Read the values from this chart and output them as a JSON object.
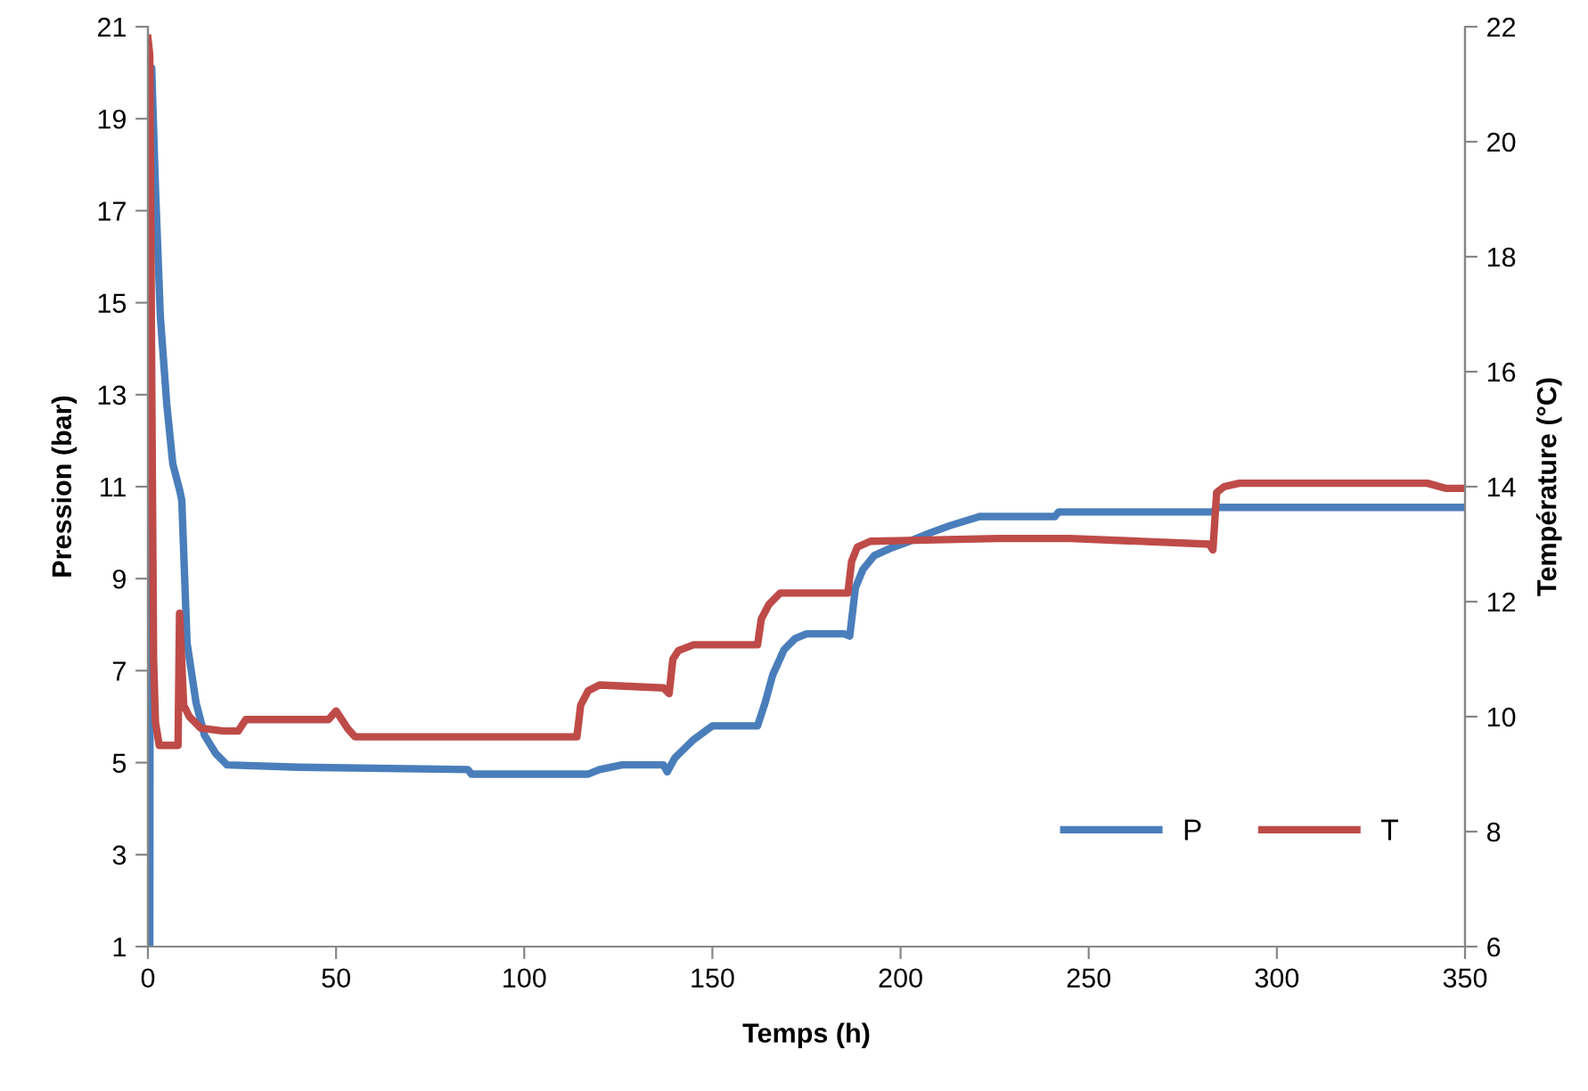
{
  "chart_data": {
    "type": "line",
    "xlabel": "Temps (h)",
    "ylabel": "Pression (bar)",
    "y2label": "Température (°C)",
    "xlim": [
      0,
      350
    ],
    "xticks": [
      0,
      50,
      100,
      150,
      200,
      250,
      300,
      350
    ],
    "ylim": [
      1,
      21
    ],
    "yticks": [
      1,
      3,
      5,
      7,
      9,
      11,
      13,
      15,
      17,
      19,
      21
    ],
    "y2lim": [
      6,
      22
    ],
    "y2ticks": [
      6,
      8,
      10,
      12,
      14,
      16,
      18,
      20,
      22
    ],
    "grid": false,
    "legend": "bottom right",
    "marker": "none",
    "line_style": "solid",
    "series": [
      {
        "name": "P",
        "color": "#4a7ebb",
        "x": [
          0.5,
          0.7,
          1,
          2,
          3.3,
          5,
          6.6,
          8.5,
          9,
          10.4,
          12.8,
          15,
          18,
          21,
          40,
          85,
          86,
          117,
          120,
          126,
          137,
          138,
          140,
          145,
          150,
          162,
          164,
          166,
          169,
          172,
          175,
          185,
          186.5,
          188,
          190,
          193,
          197,
          202,
          208,
          213,
          221,
          241,
          242,
          283,
          284,
          350
        ],
        "values": [
          1,
          19.8,
          20.1,
          17.5,
          14.7,
          12.8,
          11.5,
          10.9,
          10.7,
          7.6,
          6.3,
          5.6,
          5.2,
          4.95,
          4.9,
          4.85,
          4.75,
          4.75,
          4.85,
          4.95,
          4.95,
          4.8,
          5.1,
          5.5,
          5.8,
          5.8,
          6.3,
          6.9,
          7.45,
          7.7,
          7.8,
          7.8,
          7.75,
          8.8,
          9.2,
          9.5,
          9.65,
          9.8,
          10,
          10.15,
          10.35,
          10.35,
          10.45,
          10.45,
          10.55,
          10.55
        ]
      },
      {
        "name": "T",
        "color": "#be4b48",
        "axis": "y2",
        "x": [
          0,
          0.5,
          1,
          1.5,
          2,
          3,
          8,
          8.4,
          9.5,
          11,
          14,
          20,
          24,
          26,
          48,
          50,
          53,
          55,
          114,
          115,
          117,
          120,
          137,
          138.5,
          139.5,
          141,
          145,
          162,
          163,
          165,
          168,
          186,
          187,
          188.5,
          192,
          226,
          245,
          282,
          283,
          284,
          286,
          290,
          340,
          345,
          350
        ],
        "values": [
          21.8,
          21.5,
          16,
          11,
          9.9,
          9.5,
          9.5,
          11.8,
          10.2,
          10,
          9.8,
          9.75,
          9.75,
          9.95,
          9.95,
          10.1,
          9.8,
          9.65,
          9.65,
          10.2,
          10.45,
          10.55,
          10.5,
          10.4,
          11,
          11.15,
          11.25,
          11.25,
          11.7,
          11.95,
          12.15,
          12.15,
          12.7,
          12.95,
          13.05,
          13.1,
          13.1,
          13,
          12.9,
          13.9,
          14,
          14.06,
          14.06,
          13.97,
          13.97
        ]
      }
    ]
  }
}
